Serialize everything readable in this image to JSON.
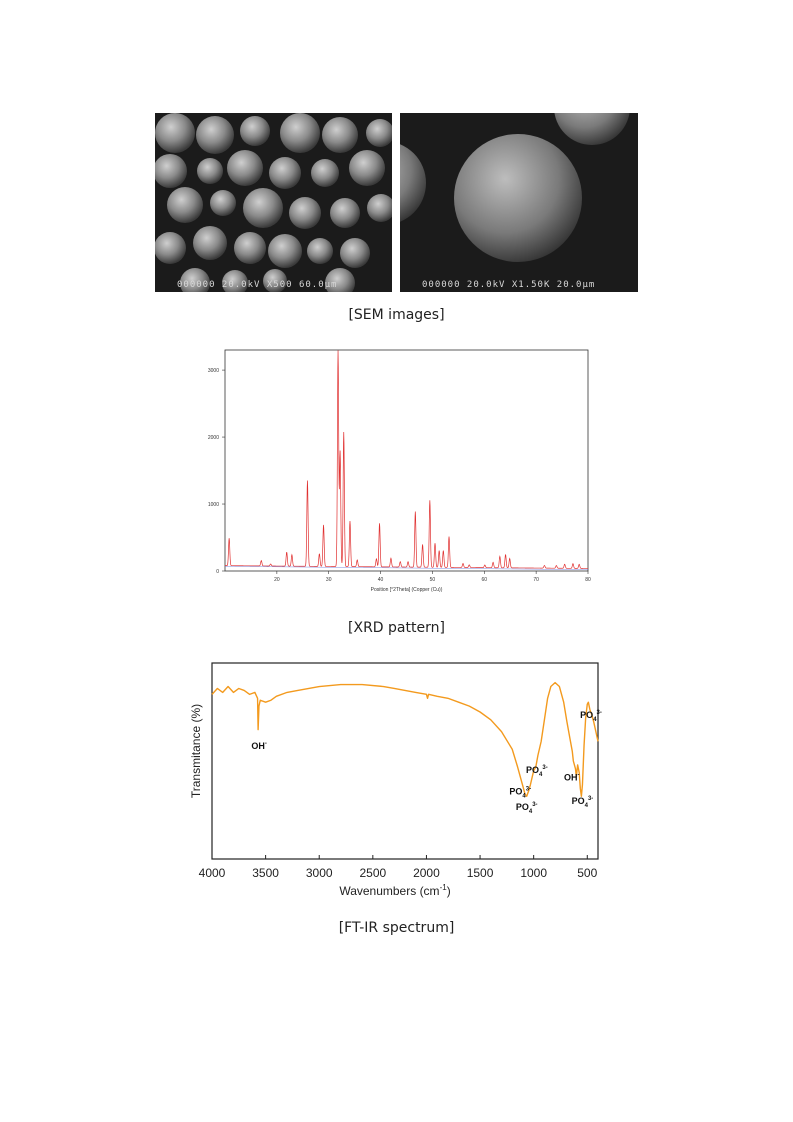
{
  "sem": {
    "left_label": "000000  20.0kV  X500   60.0μm",
    "right_label": "000000  20.0kV  X1.50K  20.0μm",
    "caption": "[SEM images]"
  },
  "xrd": {
    "caption": "[XRD pattern]",
    "chart_data": {
      "type": "line",
      "xlabel": "Position [°2Theta] (Copper (Cu))",
      "ylabel": "",
      "xlim": [
        10,
        80
      ],
      "ylim": [
        0,
        3300
      ],
      "x_ticks": [
        "20",
        "30",
        "40",
        "50",
        "60",
        "70",
        "80"
      ],
      "y_ticks": [
        "0",
        "1000",
        "2000",
        "3000"
      ],
      "series_color": "#e03030",
      "baseline": 80,
      "peaks": [
        [
          10.8,
          490
        ],
        [
          17.0,
          160
        ],
        [
          18.8,
          110
        ],
        [
          21.9,
          290
        ],
        [
          22.9,
          250
        ],
        [
          25.9,
          1360
        ],
        [
          28.2,
          270
        ],
        [
          29.0,
          700
        ],
        [
          31.8,
          3300
        ],
        [
          32.2,
          1800
        ],
        [
          32.9,
          2090
        ],
        [
          34.1,
          760
        ],
        [
          35.5,
          180
        ],
        [
          39.2,
          200
        ],
        [
          39.8,
          730
        ],
        [
          42.0,
          210
        ],
        [
          43.8,
          160
        ],
        [
          45.3,
          160
        ],
        [
          46.7,
          910
        ],
        [
          48.1,
          420
        ],
        [
          49.5,
          1080
        ],
        [
          50.5,
          440
        ],
        [
          51.3,
          330
        ],
        [
          52.1,
          330
        ],
        [
          53.2,
          540
        ],
        [
          55.9,
          140
        ],
        [
          57.1,
          120
        ],
        [
          60.1,
          120
        ],
        [
          61.7,
          160
        ],
        [
          63.0,
          250
        ],
        [
          64.1,
          280
        ],
        [
          64.9,
          220
        ],
        [
          71.6,
          120
        ],
        [
          73.9,
          120
        ],
        [
          75.5,
          140
        ],
        [
          77.1,
          150
        ],
        [
          78.3,
          140
        ]
      ]
    }
  },
  "ftir": {
    "caption": "[FT-IR spectrum]",
    "chart_data": {
      "type": "line",
      "xlabel": "Wavenumbers (cm",
      "xlabel_sup": "-1",
      "xlabel_end": ")",
      "ylabel": "Transmitance (%)",
      "xlim": [
        4000,
        400
      ],
      "x_ticks": [
        4000,
        3500,
        3000,
        2500,
        2000,
        1500,
        1000,
        500
      ],
      "series_color": "#f39a1e",
      "points": [
        [
          4000,
          84
        ],
        [
          3950,
          87
        ],
        [
          3900,
          85
        ],
        [
          3850,
          88
        ],
        [
          3800,
          85
        ],
        [
          3750,
          87
        ],
        [
          3700,
          86
        ],
        [
          3650,
          84
        ],
        [
          3600,
          85
        ],
        [
          3575,
          82
        ],
        [
          3570,
          66
        ],
        [
          3562,
          78
        ],
        [
          3550,
          81
        ],
        [
          3500,
          80
        ],
        [
          3450,
          81
        ],
        [
          3400,
          83
        ],
        [
          3300,
          85
        ],
        [
          3200,
          86
        ],
        [
          3000,
          88
        ],
        [
          2800,
          89
        ],
        [
          2600,
          89
        ],
        [
          2400,
          88
        ],
        [
          2300,
          87
        ],
        [
          2200,
          86
        ],
        [
          2100,
          85
        ],
        [
          2000,
          84
        ],
        [
          1990,
          82
        ],
        [
          1980,
          84
        ],
        [
          1900,
          83
        ],
        [
          1800,
          82
        ],
        [
          1700,
          80
        ],
        [
          1600,
          78
        ],
        [
          1500,
          75
        ],
        [
          1400,
          71
        ],
        [
          1300,
          65
        ],
        [
          1200,
          56
        ],
        [
          1150,
          47
        ],
        [
          1100,
          37
        ],
        [
          1080,
          33
        ],
        [
          1065,
          32
        ],
        [
          1045,
          35
        ],
        [
          1030,
          38
        ],
        [
          1000,
          45
        ],
        [
          980,
          47
        ],
        [
          960,
          53
        ],
        [
          930,
          60
        ],
        [
          900,
          71
        ],
        [
          870,
          82
        ],
        [
          840,
          88
        ],
        [
          800,
          90
        ],
        [
          760,
          88
        ],
        [
          720,
          80
        ],
        [
          690,
          70
        ],
        [
          660,
          61
        ],
        [
          640,
          55
        ],
        [
          630,
          50
        ],
        [
          610,
          46
        ],
        [
          602,
          42
        ],
        [
          590,
          48
        ],
        [
          575,
          44
        ],
        [
          565,
          36
        ],
        [
          555,
          32
        ],
        [
          545,
          38
        ],
        [
          530,
          58
        ],
        [
          515,
          72
        ],
        [
          500,
          79
        ],
        [
          490,
          80
        ],
        [
          475,
          76
        ],
        [
          460,
          74
        ],
        [
          440,
          70
        ],
        [
          420,
          65
        ],
        [
          400,
          60
        ]
      ],
      "ylim": [
        0,
        100
      ],
      "annotations": [
        {
          "base": "OH",
          "sup": "-",
          "sub": "",
          "wn": 3560,
          "t": 56
        },
        {
          "base": "PO",
          "sup": "3-",
          "sub": "4",
          "wn": 1125,
          "t": 33
        },
        {
          "base": "PO",
          "sup": "3-",
          "sub": "4",
          "wn": 970,
          "t": 44
        },
        {
          "base": "PO",
          "sup": "3-",
          "sub": "4",
          "wn": 1065,
          "t": 25
        },
        {
          "base": "OH",
          "sup": "-",
          "sub": "",
          "wn": 645,
          "t": 40
        },
        {
          "base": "PO",
          "sup": "3-",
          "sub": "4",
          "wn": 545,
          "t": 28
        },
        {
          "base": "PO",
          "sup": "3-",
          "sub": "4",
          "wn": 465,
          "t": 72
        }
      ]
    }
  }
}
